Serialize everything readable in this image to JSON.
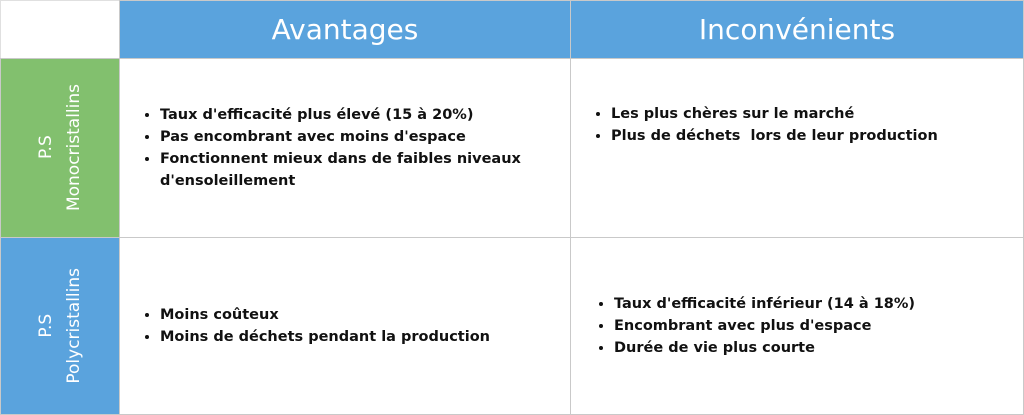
{
  "table": {
    "header": [
      "Avantages",
      "Inconvénients"
    ],
    "rows": [
      {
        "label": [
          "P.S",
          "Monocristallins"
        ],
        "cells": [
          [
            "Taux d'efficacité plus élevé (15 à 20%)",
            "Pas encombrant avec moins d'espace",
            "Fonctionnent mieux dans de faibles niveaux d'ensoleillement"
          ],
          [
            "Les plus chères sur le marché",
            "Plus de déchets  lors de leur production"
          ]
        ]
      },
      {
        "label": [
          "P.S",
          "Polycristallins"
        ],
        "cells": [
          [
            "Moins coûteux",
            "Moins de déchets pendant la production"
          ],
          [
            "Taux d'efficacité inférieur (14 à 18%)",
            "Encombrant avec plus d'espace",
            "Durée de vie plus courte"
          ]
        ]
      }
    ]
  }
}
